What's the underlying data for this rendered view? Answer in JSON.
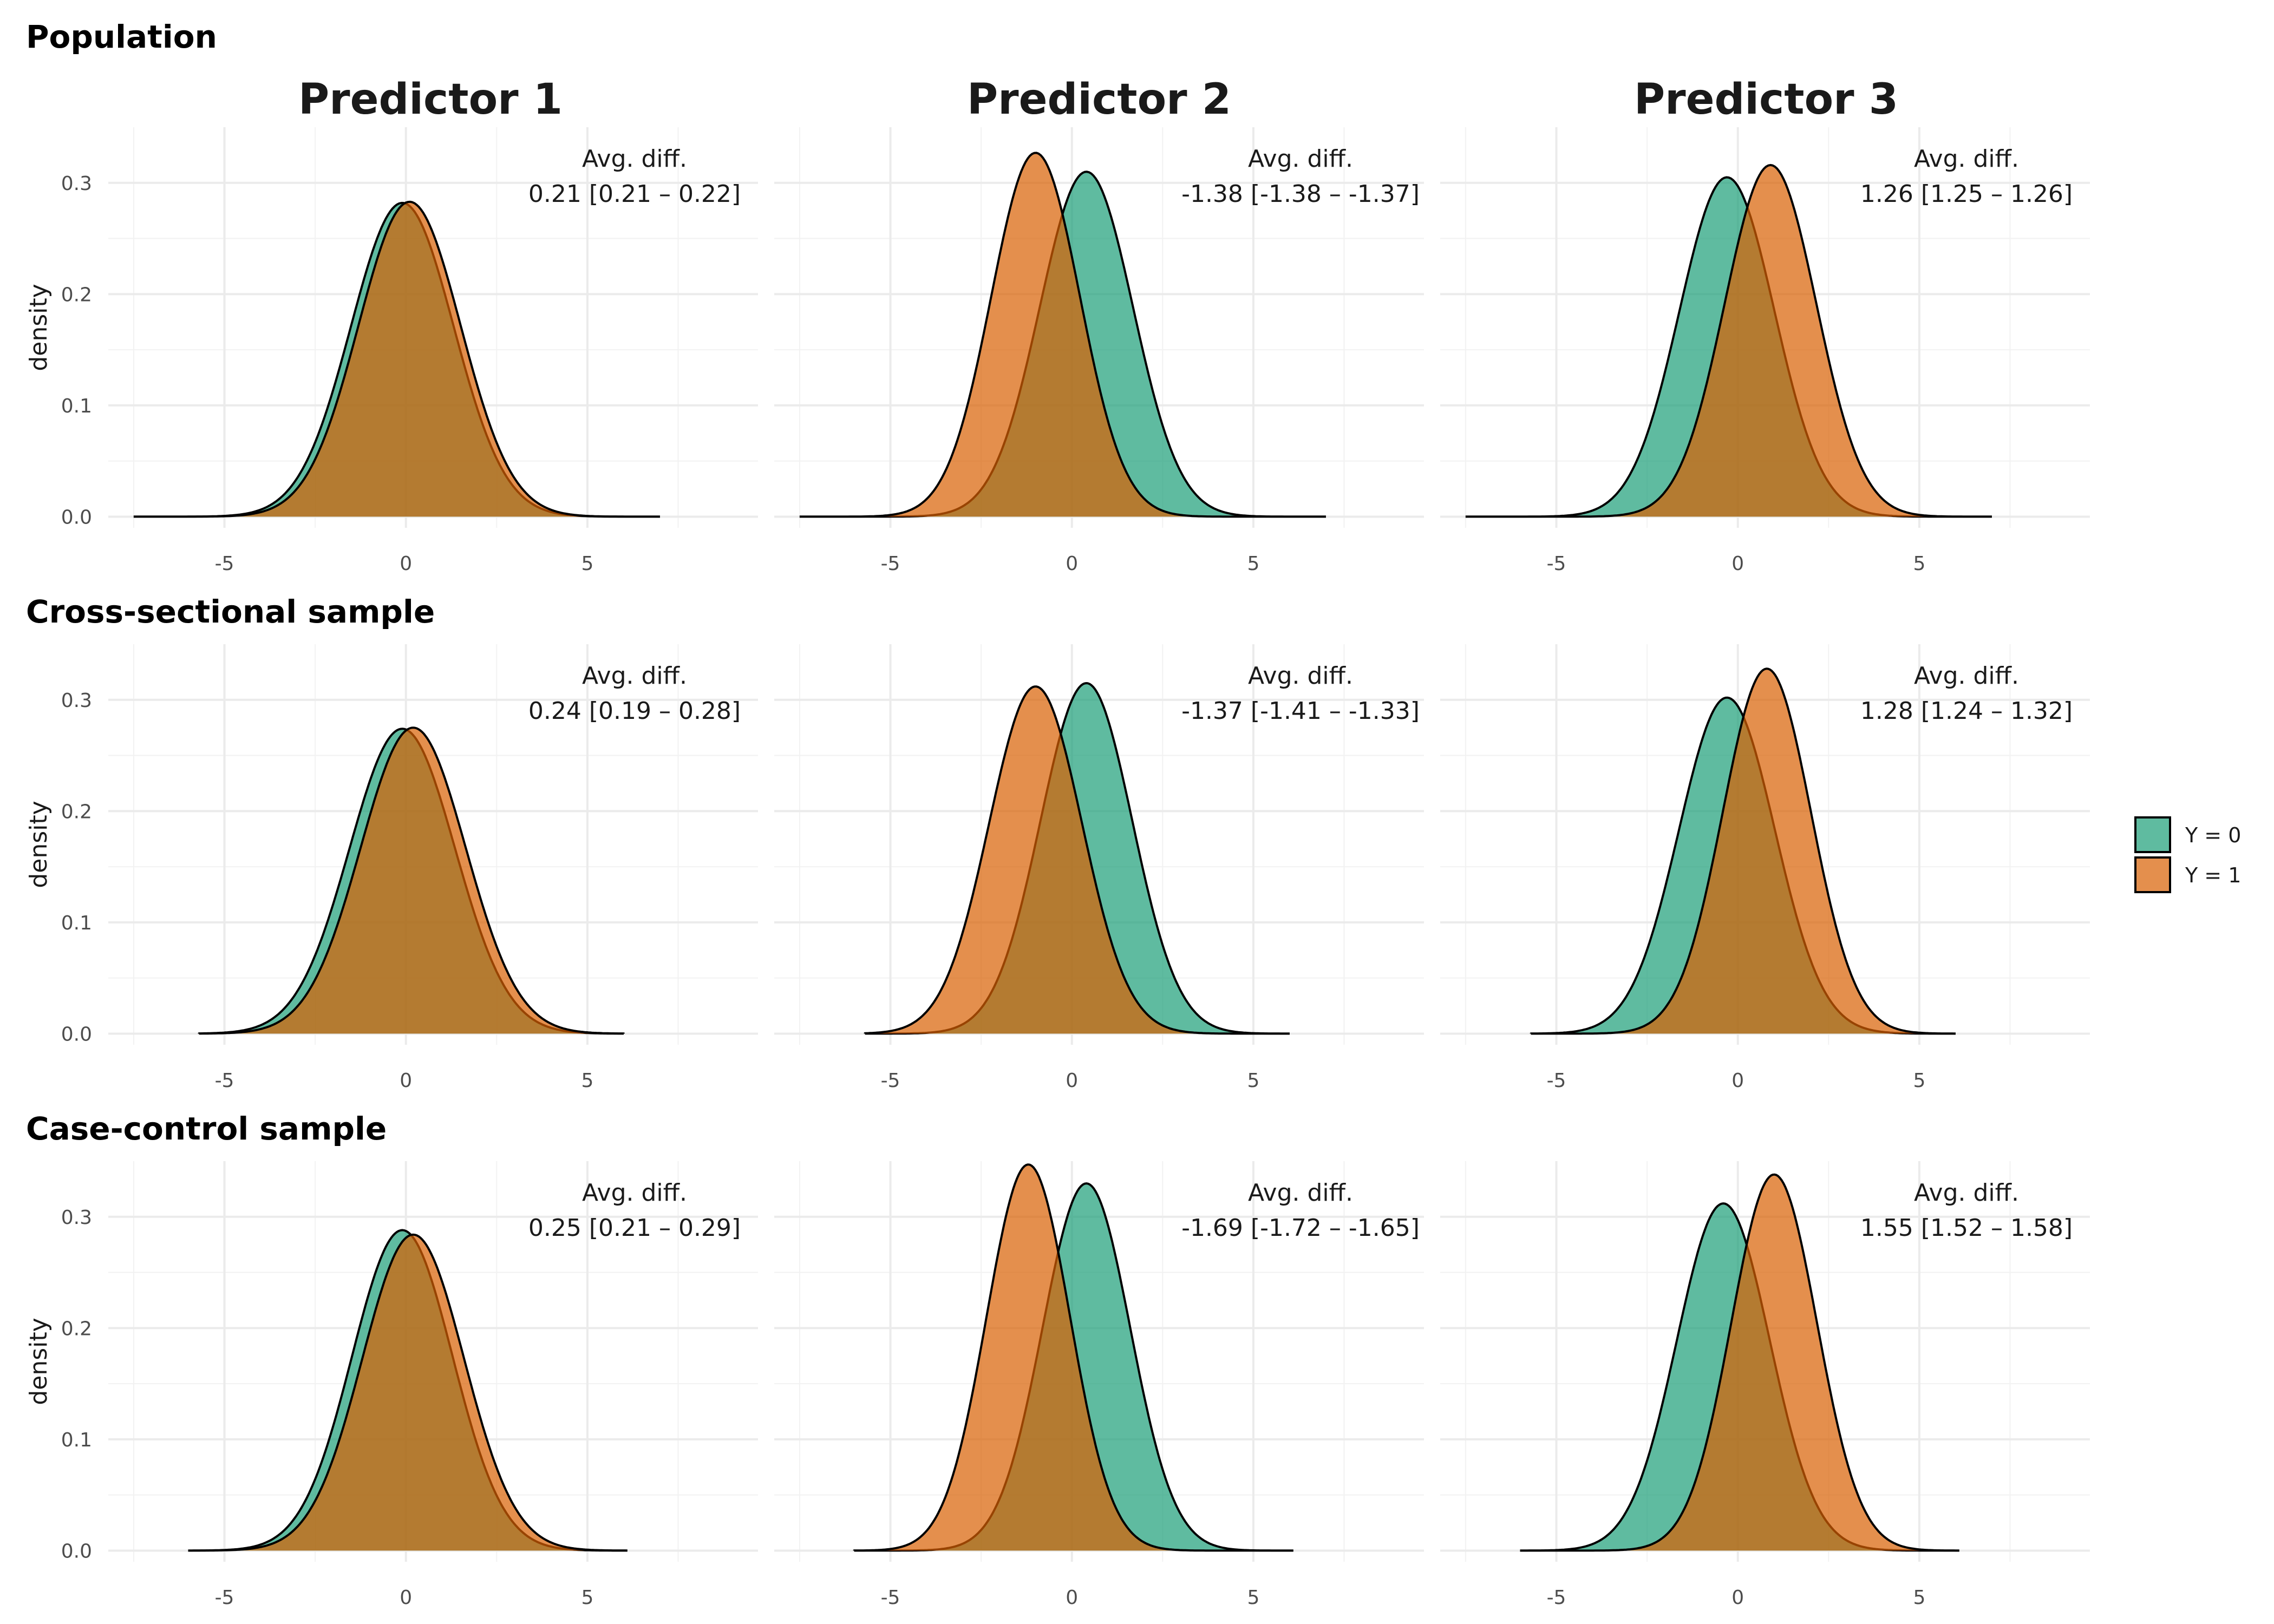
{
  "colors": {
    "Y0": "#1b9e77",
    "Y1": "#d95f02",
    "outline": "#000000"
  },
  "chart_data": {
    "type": "area",
    "title": "",
    "column_titles": [
      "Predictor 1",
      "Predictor 2",
      "Predictor 3"
    ],
    "row_titles": [
      "Population",
      "Cross-sectional sample",
      "Case-control sample"
    ],
    "xlabel": "",
    "ylabel": "density",
    "xlim": [
      -8.2,
      9.7
    ],
    "ylim": [
      -0.01,
      0.35
    ],
    "x_ticks": [
      -5,
      0,
      5
    ],
    "x_tick_labels": [
      "-5",
      "0",
      "5"
    ],
    "y_ticks": [
      0,
      0.1,
      0.2,
      0.3
    ],
    "y_tick_labels": [
      "0.0",
      "0.1",
      "0.2",
      "0.3"
    ],
    "grid": true,
    "fill_alpha": 0.7,
    "legend": {
      "position": "right",
      "entries": [
        "Y = 0",
        "Y = 1"
      ]
    },
    "annotation_title": "Avg. diff.",
    "panels": [
      {
        "row": 0,
        "col": 0,
        "annotation": "0.21 [0.21 – 0.22]",
        "series": [
          {
            "name": "Y = 0",
            "mean": -0.1,
            "peak": 0.282,
            "support": [
              -7.5,
              7.0
            ]
          },
          {
            "name": "Y = 1",
            "mean": 0.1,
            "peak": 0.283,
            "support": [
              -7.5,
              7.0
            ]
          }
        ]
      },
      {
        "row": 0,
        "col": 1,
        "annotation": "-1.38 [-1.38 – -1.37]",
        "series": [
          {
            "name": "Y = 0",
            "mean": 0.4,
            "peak": 0.31,
            "support": [
              -7.5,
              7.0
            ]
          },
          {
            "name": "Y = 1",
            "mean": -1.0,
            "peak": 0.327,
            "support": [
              -7.5,
              7.0
            ]
          }
        ]
      },
      {
        "row": 0,
        "col": 2,
        "annotation": "1.26 [1.25 – 1.26]",
        "series": [
          {
            "name": "Y = 0",
            "mean": -0.3,
            "peak": 0.305,
            "support": [
              -7.5,
              7.0
            ]
          },
          {
            "name": "Y = 1",
            "mean": 0.9,
            "peak": 0.316,
            "support": [
              -7.5,
              7.0
            ]
          }
        ]
      },
      {
        "row": 1,
        "col": 0,
        "annotation": "0.24 [0.19 – 0.28]",
        "series": [
          {
            "name": "Y = 0",
            "mean": -0.1,
            "peak": 0.274,
            "support": [
              -5.7,
              6.0
            ]
          },
          {
            "name": "Y = 1",
            "mean": 0.2,
            "peak": 0.275,
            "support": [
              -5.7,
              6.0
            ]
          }
        ]
      },
      {
        "row": 1,
        "col": 1,
        "annotation": "-1.37 [-1.41 – -1.33]",
        "series": [
          {
            "name": "Y = 0",
            "mean": 0.4,
            "peak": 0.315,
            "support": [
              -5.7,
              6.0
            ]
          },
          {
            "name": "Y = 1",
            "mean": -1.0,
            "peak": 0.312,
            "support": [
              -5.7,
              6.0
            ]
          }
        ]
      },
      {
        "row": 1,
        "col": 2,
        "annotation": "1.28 [1.24 – 1.32]",
        "series": [
          {
            "name": "Y = 0",
            "mean": -0.3,
            "peak": 0.302,
            "support": [
              -5.7,
              6.0
            ]
          },
          {
            "name": "Y = 1",
            "mean": 0.8,
            "peak": 0.328,
            "support": [
              -5.7,
              6.0
            ]
          }
        ]
      },
      {
        "row": 2,
        "col": 0,
        "annotation": "0.25 [0.21 – 0.29]",
        "series": [
          {
            "name": "Y = 0",
            "mean": -0.1,
            "peak": 0.288,
            "support": [
              -6.0,
              6.1
            ]
          },
          {
            "name": "Y = 1",
            "mean": 0.2,
            "peak": 0.284,
            "support": [
              -6.0,
              6.1
            ]
          }
        ]
      },
      {
        "row": 2,
        "col": 1,
        "annotation": "-1.69 [-1.72 – -1.65]",
        "series": [
          {
            "name": "Y = 0",
            "mean": 0.4,
            "peak": 0.33,
            "support": [
              -6.0,
              6.1
            ]
          },
          {
            "name": "Y = 1",
            "mean": -1.2,
            "peak": 0.347,
            "support": [
              -6.0,
              6.1
            ]
          }
        ]
      },
      {
        "row": 2,
        "col": 2,
        "annotation": "1.55 [1.52 – 1.58]",
        "series": [
          {
            "name": "Y = 0",
            "mean": -0.4,
            "peak": 0.312,
            "support": [
              -6.0,
              6.1
            ]
          },
          {
            "name": "Y = 1",
            "mean": 1.0,
            "peak": 0.338,
            "support": [
              -6.0,
              6.1
            ]
          }
        ]
      }
    ]
  }
}
